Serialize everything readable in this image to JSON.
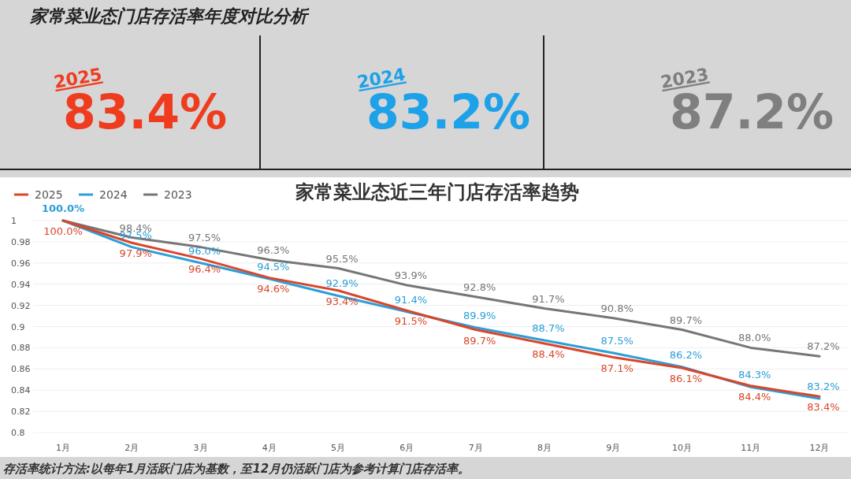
{
  "chart_data": [
    {
      "type": "other",
      "title": "家常菜业态门店存活率年度对比分析",
      "categories": [
        "2025",
        "2024",
        "2023"
      ],
      "value_labels": [
        "83.4%",
        "83.2%",
        "87.2%"
      ],
      "colors": [
        "#f03c1e",
        "#1da1e8",
        "#7f7f7f"
      ]
    },
    {
      "type": "line",
      "title": "家常菜业态近三年门店存活率趋势",
      "categories": [
        "1月",
        "2月",
        "3月",
        "4月",
        "5月",
        "6月",
        "7月",
        "8月",
        "9月",
        "10月",
        "11月",
        "12月"
      ],
      "series": [
        {
          "name": "2025",
          "color": "#d9462a",
          "values": [
            1.0,
            0.979,
            0.964,
            0.946,
            0.934,
            0.915,
            0.897,
            0.884,
            0.871,
            0.861,
            0.844,
            0.834
          ],
          "value_labels": [
            "100.0%",
            "97.9%",
            "96.4%",
            "94.6%",
            "93.4%",
            "91.5%",
            "89.7%",
            "88.4%",
            "87.1%",
            "86.1%",
            "84.4%",
            "83.4%"
          ]
        },
        {
          "name": "2024",
          "color": "#2a9fd8",
          "values": [
            1.0,
            0.975,
            0.96,
            0.945,
            0.929,
            0.914,
            0.899,
            0.887,
            0.875,
            0.862,
            0.843,
            0.832
          ],
          "value_labels": [
            "100.0%",
            "97.5%",
            "96.0%",
            "94.5%",
            "92.9%",
            "91.4%",
            "89.9%",
            "88.7%",
            "87.5%",
            "86.2%",
            "84.3%",
            "83.2%"
          ]
        },
        {
          "name": "2023",
          "color": "#767676",
          "values": [
            1.0,
            0.984,
            0.975,
            0.963,
            0.955,
            0.939,
            0.928,
            0.917,
            0.908,
            0.897,
            0.88,
            0.872
          ],
          "value_labels": [
            null,
            "98.4%",
            "97.5%",
            "96.3%",
            "95.5%",
            "93.9%",
            "92.8%",
            "91.7%",
            "90.8%",
            "89.7%",
            "88.0%",
            "87.2%"
          ]
        }
      ],
      "ylim": [
        0.8,
        1
      ],
      "yticks": [
        0.8,
        0.82,
        0.84,
        0.86,
        0.88,
        0.9,
        0.92,
        0.94,
        0.96,
        0.98,
        1
      ],
      "grid": "y",
      "legend": "top left",
      "marker": "none",
      "line_style": "solid",
      "annotations": [
        "存活率统计方法:以每年1月活跃门店为基数，至12月仍活跃门店为参考计算门店存活率。"
      ]
    }
  ]
}
